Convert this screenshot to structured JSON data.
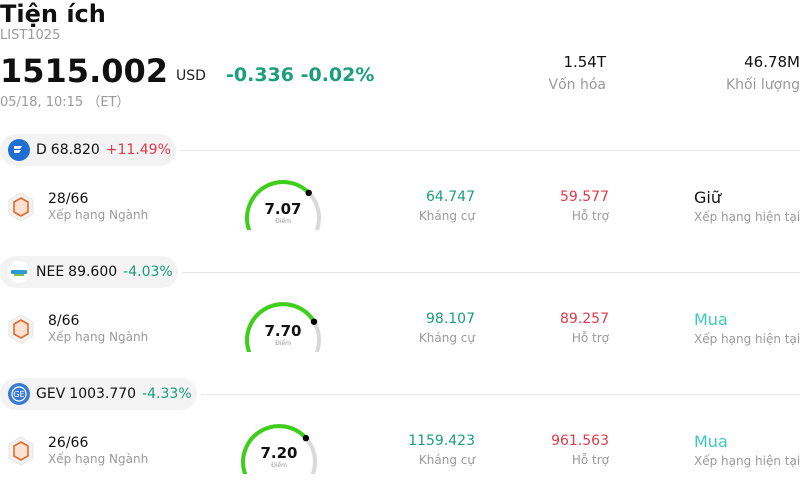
{
  "header": {
    "title": "Tiện ích",
    "code": "LIST1025",
    "price": "1515.002",
    "currency": "USD",
    "change": "-0.336 -0.02%",
    "time": "05/18, 10:15 （ET）",
    "market_cap_value": "1.54T",
    "market_cap_label": "Vốn hóa",
    "volume_value": "46.78M",
    "volume_label": "Khối lượng"
  },
  "stocks": [
    {
      "ticker": "D",
      "price": "68.820",
      "change": "+11.49%",
      "direction": "up",
      "logo": "dominion-logo",
      "logo_color": "#1e6fd1",
      "rank": "28/66",
      "rank_label": "Xếp hạng Ngành",
      "score": "7.07",
      "score_value": 7.07,
      "score_label": "Điểm",
      "resistance": "64.747",
      "resistance_label": "Kháng cự",
      "support": "59.577",
      "support_label": "Hỗ trợ",
      "rating": "Giữ",
      "rating_label": "Xếp hạng hiện tại"
    },
    {
      "ticker": "NEE",
      "price": "89.600",
      "change": "-4.03%",
      "direction": "down",
      "logo": "nextera-logo",
      "logo_color": "#2c9ad8",
      "rank": "8/66",
      "rank_label": "Xếp hạng Ngành",
      "score": "7.70",
      "score_value": 7.7,
      "score_label": "Điểm",
      "resistance": "98.107",
      "resistance_label": "Kháng cự",
      "support": "89.257",
      "support_label": "Hỗ trợ",
      "rating": "Mua",
      "rating_label": "Xếp hạng hiện tại"
    },
    {
      "ticker": "GEV",
      "price": "1003.770",
      "change": "-4.33%",
      "direction": "down",
      "logo": "ge-logo",
      "logo_color": "#3a7bd5",
      "rank": "26/66",
      "rank_label": "Xếp hạng Ngành",
      "score": "7.20",
      "score_value": 7.2,
      "score_label": "Điểm",
      "resistance": "1159.423",
      "resistance_label": "Kháng cự",
      "support": "961.563",
      "support_label": "Hỗ trợ",
      "rating": "Mua",
      "rating_label": "Xếp hạng hiện tại"
    }
  ],
  "colors": {
    "up": "#e03a4a",
    "down": "#1a9e7c",
    "gauge_fill": "#3ecf1a",
    "gauge_track": "#d9d9d9",
    "buy": "#3ec9c0"
  }
}
